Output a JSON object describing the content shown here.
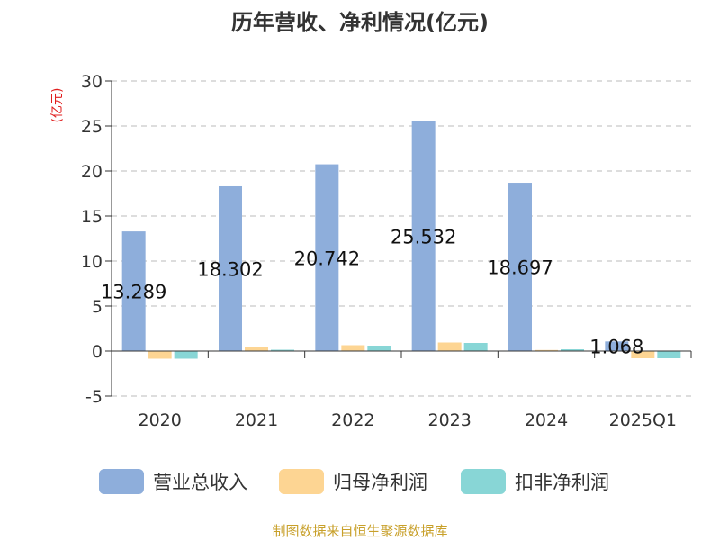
{
  "chart_data": {
    "type": "bar",
    "title": "历年营收、净利情况(亿元)",
    "ylabel": "(亿元)",
    "xlabel": "",
    "categories": [
      "2020",
      "2021",
      "2022",
      "2023",
      "2024",
      "2025Q1"
    ],
    "ylim": [
      -5,
      30
    ],
    "yticks": [
      30,
      25,
      20,
      15,
      10,
      5,
      0,
      -5
    ],
    "grid": true,
    "legend_position": "bottom",
    "series": [
      {
        "name": "营业总收入",
        "color": "#8eaedb",
        "values": [
          13.289,
          18.302,
          20.742,
          25.532,
          18.697,
          1.068
        ],
        "labels": [
          "13.289",
          "18.302",
          "20.742",
          "25.532",
          "18.697",
          "1.068"
        ]
      },
      {
        "name": "归母净利润",
        "color": "#fdd593",
        "values": [
          -0.85,
          0.45,
          0.65,
          0.95,
          0.12,
          -0.8
        ]
      },
      {
        "name": "扣非净利润",
        "color": "#88d6d6",
        "values": [
          -0.85,
          0.15,
          0.6,
          0.9,
          0.2,
          -0.8
        ]
      }
    ]
  },
  "footer": "制图数据来自恒生聚源数据库"
}
